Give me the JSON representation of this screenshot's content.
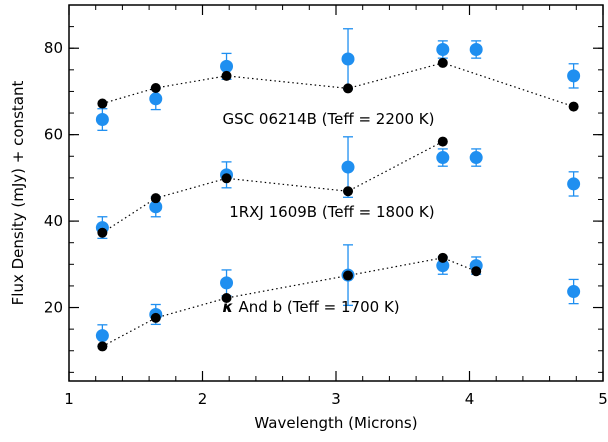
{
  "chart_data": {
    "type": "scatter",
    "xlabel": "Wavelength (Microns)",
    "ylabel": "Flux Density (mJy) + constant",
    "xlim": [
      1,
      5
    ],
    "ylim": [
      3,
      90
    ],
    "xticks": [
      1,
      2,
      3,
      4,
      5
    ],
    "yticks": [
      20,
      40,
      60,
      80
    ],
    "grid": false,
    "colors": {
      "observed": "#1f8ff0",
      "model": "#000000",
      "axes": "#000000"
    },
    "annotations": [
      {
        "text": "GSC 06214B (Teff = 2200 K)",
        "x": 2.15,
        "y": 62.5
      },
      {
        "text": "1RXJ 1609B (Teff = 1800 K)",
        "x": 2.2,
        "y": 41.0
      },
      {
        "text": "And b (Teff = 1700 K)",
        "symbol": "κ",
        "x": 2.15,
        "y": 19.0
      }
    ],
    "series": [
      {
        "object": "GSC 06214B",
        "observed": [
          {
            "x": 1.25,
            "y": 63.5,
            "err": 2.5
          },
          {
            "x": 1.65,
            "y": 68.3,
            "err": 2.5
          },
          {
            "x": 2.18,
            "y": 75.8,
            "err": 3.0
          },
          {
            "x": 3.09,
            "y": 77.5,
            "err": 7.0
          },
          {
            "x": 3.8,
            "y": 79.7,
            "err": 2.0
          },
          {
            "x": 4.05,
            "y": 79.7,
            "err": 2.0
          },
          {
            "x": 4.78,
            "y": 73.6,
            "err": 2.8
          }
        ],
        "model": [
          {
            "x": 1.25,
            "y": 67.2
          },
          {
            "x": 1.65,
            "y": 70.8
          },
          {
            "x": 2.18,
            "y": 73.6
          },
          {
            "x": 3.09,
            "y": 70.7
          },
          {
            "x": 3.8,
            "y": 76.6
          },
          {
            "x": 4.78,
            "y": 66.5
          }
        ]
      },
      {
        "object": "1RXJ 1609B",
        "observed": [
          {
            "x": 1.25,
            "y": 38.5,
            "err": 2.5
          },
          {
            "x": 1.65,
            "y": 43.3,
            "err": 2.3
          },
          {
            "x": 2.18,
            "y": 50.7,
            "err": 3.0
          },
          {
            "x": 3.09,
            "y": 52.5,
            "err": 7.0
          },
          {
            "x": 3.8,
            "y": 54.7,
            "err": 2.0
          },
          {
            "x": 4.05,
            "y": 54.7,
            "err": 2.0
          },
          {
            "x": 4.78,
            "y": 48.6,
            "err": 2.8
          }
        ],
        "model": [
          {
            "x": 1.25,
            "y": 37.3
          },
          {
            "x": 1.65,
            "y": 45.3
          },
          {
            "x": 2.18,
            "y": 49.9
          },
          {
            "x": 3.09,
            "y": 46.9
          },
          {
            "x": 3.8,
            "y": 58.4
          }
        ]
      },
      {
        "object": "κ And b",
        "observed": [
          {
            "x": 1.25,
            "y": 13.5,
            "err": 2.5
          },
          {
            "x": 1.65,
            "y": 18.4,
            "err": 2.3
          },
          {
            "x": 2.18,
            "y": 25.7,
            "err": 3.0
          },
          {
            "x": 3.09,
            "y": 27.5,
            "err": 7.0
          },
          {
            "x": 3.8,
            "y": 29.7,
            "err": 2.0
          },
          {
            "x": 4.05,
            "y": 29.7,
            "err": 2.0
          },
          {
            "x": 4.78,
            "y": 23.7,
            "err": 2.8
          }
        ],
        "model": [
          {
            "x": 1.25,
            "y": 11.0
          },
          {
            "x": 1.65,
            "y": 17.6
          },
          {
            "x": 2.18,
            "y": 22.2
          },
          {
            "x": 3.09,
            "y": 27.4
          },
          {
            "x": 3.8,
            "y": 31.5
          },
          {
            "x": 4.05,
            "y": 28.4
          }
        ]
      }
    ]
  }
}
